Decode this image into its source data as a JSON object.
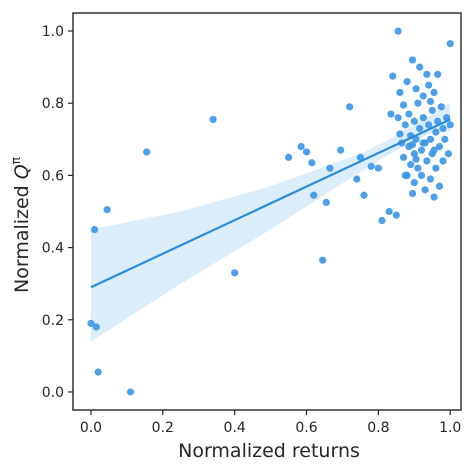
{
  "chart_data": {
    "type": "scatter",
    "title": "",
    "xlabel": "Normalized returns",
    "ylabel_main": "Normalized ",
    "ylabel_symbol": "Q",
    "ylabel_superscript": "π",
    "xlim": [
      -0.05,
      1.03
    ],
    "ylim": [
      -0.05,
      1.05
    ],
    "x_ticks": [
      0.0,
      0.2,
      0.4,
      0.6,
      0.8,
      1.0
    ],
    "x_tick_labels": [
      "0.0",
      "0.2",
      "0.4",
      "0.6",
      "0.8",
      "1.0"
    ],
    "y_ticks": [
      0.0,
      0.2,
      0.4,
      0.6,
      0.8,
      1.0
    ],
    "y_tick_labels": [
      "0.0",
      "0.2",
      "0.4",
      "0.6",
      "0.8",
      "1.0"
    ],
    "grid": false,
    "colors": {
      "points": "#3a95e6",
      "line": "#2a8bdd",
      "band": "#cfe5f9",
      "spine": "#262626"
    },
    "regression": {
      "x_range": [
        0.0,
        1.0
      ],
      "intercept": 0.29,
      "slope": 0.465
    },
    "confidence_band": {
      "x": [
        0.0,
        0.25,
        0.5,
        0.75,
        0.85,
        0.95,
        1.0
      ],
      "lower": [
        0.14,
        0.3,
        0.45,
        0.61,
        0.67,
        0.72,
        0.72
      ],
      "upper": [
        0.45,
        0.5,
        0.57,
        0.66,
        0.71,
        0.77,
        0.8
      ]
    },
    "points": [
      [
        0.0,
        0.19
      ],
      [
        0.01,
        0.45
      ],
      [
        0.015,
        0.18
      ],
      [
        0.02,
        0.055
      ],
      [
        0.045,
        0.505
      ],
      [
        0.11,
        0.0
      ],
      [
        0.155,
        0.665
      ],
      [
        0.34,
        0.755
      ],
      [
        0.4,
        0.33
      ],
      [
        0.55,
        0.65
      ],
      [
        0.585,
        0.68
      ],
      [
        0.6,
        0.665
      ],
      [
        0.615,
        0.635
      ],
      [
        0.62,
        0.545
      ],
      [
        0.645,
        0.365
      ],
      [
        0.655,
        0.525
      ],
      [
        0.665,
        0.62
      ],
      [
        0.695,
        0.67
      ],
      [
        0.72,
        0.79
      ],
      [
        0.74,
        0.59
      ],
      [
        0.75,
        0.65
      ],
      [
        0.76,
        0.545
      ],
      [
        0.78,
        0.625
      ],
      [
        0.8,
        0.62
      ],
      [
        0.81,
        0.475
      ],
      [
        0.83,
        0.5
      ],
      [
        0.835,
        0.77
      ],
      [
        0.84,
        0.875
      ],
      [
        0.85,
        0.49
      ],
      [
        0.855,
        0.76
      ],
      [
        0.855,
        1.0
      ],
      [
        0.86,
        0.83
      ],
      [
        0.86,
        0.715
      ],
      [
        0.865,
        0.69
      ],
      [
        0.87,
        0.65
      ],
      [
        0.87,
        0.795
      ],
      [
        0.875,
        0.74
      ],
      [
        0.88,
        0.6
      ],
      [
        0.88,
        0.86
      ],
      [
        0.885,
        0.68
      ],
      [
        0.885,
        0.77
      ],
      [
        0.89,
        0.63
      ],
      [
        0.89,
        0.71
      ],
      [
        0.895,
        0.55
      ],
      [
        0.895,
        0.92
      ],
      [
        0.9,
        0.75
      ],
      [
        0.9,
        0.66
      ],
      [
        0.9,
        0.58
      ],
      [
        0.905,
        0.84
      ],
      [
        0.905,
        0.7
      ],
      [
        0.91,
        0.62
      ],
      [
        0.91,
        0.8
      ],
      [
        0.915,
        0.9
      ],
      [
        0.915,
        0.73
      ],
      [
        0.92,
        0.67
      ],
      [
        0.92,
        0.6
      ],
      [
        0.925,
        0.76
      ],
      [
        0.925,
        0.82
      ],
      [
        0.93,
        0.69
      ],
      [
        0.93,
        0.56
      ],
      [
        0.935,
        0.88
      ],
      [
        0.935,
        0.64
      ],
      [
        0.94,
        0.74
      ],
      [
        0.94,
        0.85
      ],
      [
        0.945,
        0.7
      ],
      [
        0.945,
        0.59
      ],
      [
        0.95,
        0.78
      ],
      [
        0.95,
        0.66
      ],
      [
        0.955,
        0.54
      ],
      [
        0.955,
        0.83
      ],
      [
        0.96,
        0.72
      ],
      [
        0.96,
        0.62
      ],
      [
        0.965,
        0.88
      ],
      [
        0.965,
        0.75
      ],
      [
        0.97,
        0.68
      ],
      [
        0.97,
        0.57
      ],
      [
        0.975,
        0.79
      ],
      [
        0.98,
        0.73
      ],
      [
        0.98,
        0.64
      ],
      [
        0.985,
        0.7
      ],
      [
        0.99,
        0.76
      ],
      [
        0.995,
        0.66
      ],
      [
        1.0,
        0.965
      ],
      [
        1.0,
        0.74
      ],
      [
        0.875,
        0.6
      ],
      [
        0.895,
        0.685
      ],
      [
        0.925,
        0.69
      ],
      [
        0.905,
        0.645
      ],
      [
        0.945,
        0.805
      ],
      [
        0.955,
        0.67
      ]
    ]
  }
}
